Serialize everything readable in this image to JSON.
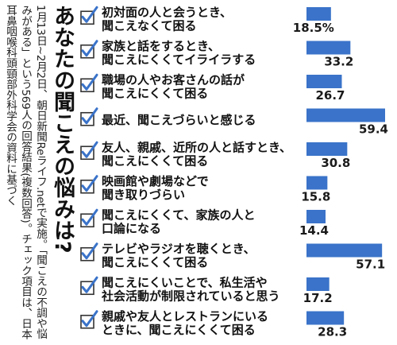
{
  "title": "あなたの聞こえの悩みは?",
  "note": "1月13日~2月2日、朝日新聞Reライフ.netで実施。「聞こえの不調や悩みがある」という569人の回答結果(複数回答)。チェック項目は、日本耳鼻咽喉科頭頸部外科学会の資料に基づく",
  "colors": {
    "bar": "#3a73c9",
    "check": "#3a73c9",
    "box": "#333333"
  },
  "chart_data": {
    "type": "bar",
    "orientation": "horizontal",
    "unit": "%",
    "xlim": [
      0,
      60
    ],
    "categories": [
      [
        "初対面の人と会うとき、",
        "聞こえなくて困る"
      ],
      [
        "家族と話をするとき、",
        "聞こえにくくてイライラする"
      ],
      [
        "職場の人やお客さんの話が",
        "聞こえにくくて困る"
      ],
      [
        "最近、聞こえづらいと感じる"
      ],
      [
        "友人、親戚、近所の人と話すとき、",
        "聞こえにくくて困る"
      ],
      [
        "映画館や劇場などで",
        "聞き取りづらい"
      ],
      [
        "聞こえにくくて、家族の人と",
        "口論になる"
      ],
      [
        "テレビやラジオを聴くとき、",
        "聞こえにくくて困る"
      ],
      [
        "聞こえにくいことで、私生活や",
        "社会活動が制限されていると思う"
      ],
      [
        "親戚や友人とレストランにいる",
        "ときに、聞こえにくくて困る"
      ]
    ],
    "values": [
      18.5,
      33.2,
      26.7,
      59.4,
      30.8,
      15.8,
      14.4,
      57.1,
      17.2,
      28.3
    ],
    "value_labels": [
      "18.5%",
      "33.2",
      "26.7",
      "59.4",
      "30.8",
      "15.8",
      "14.4",
      "57.1",
      "17.2",
      "28.3"
    ]
  }
}
